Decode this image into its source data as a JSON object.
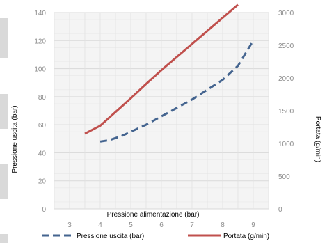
{
  "chart_data": {
    "type": "line",
    "title": "",
    "xlabel": "Pressione alimentazione (bar)",
    "ylabel": "Pressione uscita (bar)",
    "y2label": "Portata (g/min)",
    "xlim": [
      2.5,
      9.5
    ],
    "ylim": [
      0,
      140
    ],
    "y2lim": [
      0,
      3000
    ],
    "xticks": [
      "3",
      "4",
      "5",
      "6",
      "7",
      "8",
      "9"
    ],
    "yticks": [
      "0",
      "20",
      "40",
      "60",
      "80",
      "100",
      "120",
      "140"
    ],
    "y2ticks": [
      "0",
      "500",
      "1000",
      "1500",
      "2000",
      "2500",
      "3000"
    ],
    "grid": true,
    "legend_position": "bottom",
    "series": [
      {
        "name": "Pressione uscita (bar)",
        "axis": "left",
        "style": "dashed",
        "color": "#44648f",
        "x": [
          4.0,
          4.3,
          4.7,
          5.0,
          5.5,
          6.0,
          6.5,
          7.0,
          7.5,
          8.0,
          8.5,
          9.0
        ],
        "y": [
          48,
          49,
          52,
          55,
          60,
          66,
          72,
          78,
          85,
          92,
          102,
          120
        ]
      },
      {
        "name": "Portata (g/min)",
        "axis": "right",
        "style": "solid",
        "color": "#c0504d",
        "x": [
          3.5,
          4.0,
          4.5,
          5.0,
          5.5,
          6.0,
          6.5,
          7.0,
          7.5,
          8.0,
          8.5
        ],
        "y": [
          1150,
          1270,
          1480,
          1690,
          1910,
          2120,
          2320,
          2520,
          2720,
          2920,
          3120
        ]
      }
    ]
  }
}
